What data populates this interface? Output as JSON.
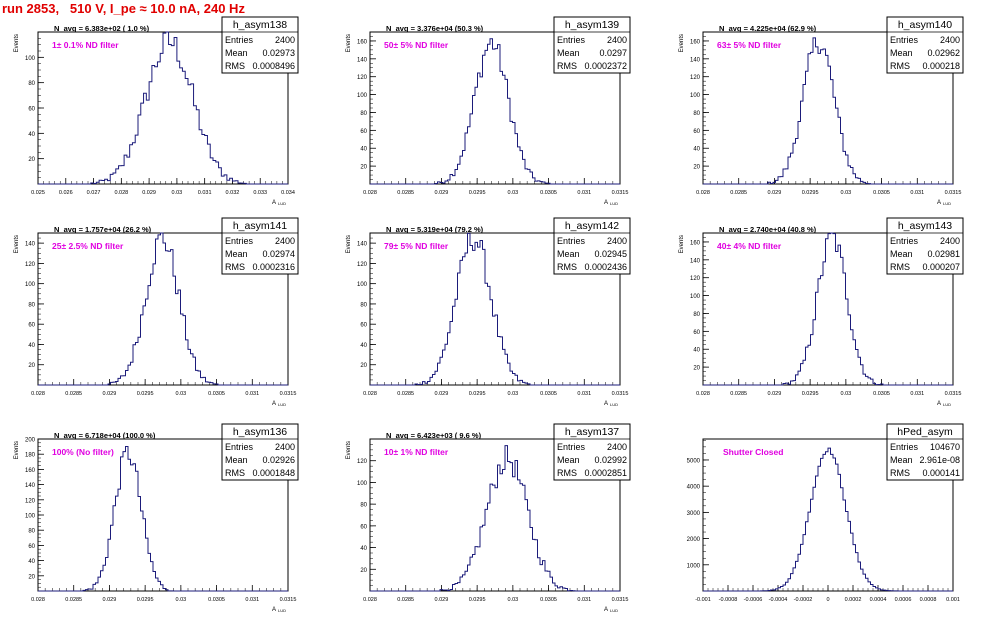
{
  "run_title": "run 2853,   510 V, I_pe ≈ 10.0 nA, 240 Hz",
  "colors": {
    "hist_line": "#1b1b7a",
    "annotation": "#e000e0",
    "title": "#e00000"
  },
  "stats_labels": {
    "entries": "Entries",
    "mean": "Mean",
    "rms": "RMS"
  },
  "chart_data": [
    {
      "type": "histogram",
      "name": "h_asym138",
      "nav": "N_avg = 6.383e+02 ( 1.0 %)",
      "filter": "1± 0.1% ND filter",
      "entries": "2400",
      "mean": "0.02973",
      "rms": "0.0008496",
      "ylabel": "Events",
      "xlabel": "A",
      "xlim": [
        0.025,
        0.034
      ],
      "ylim": [
        0,
        120
      ],
      "xticks": [
        "0.025",
        "0.026",
        "0.027",
        "0.028",
        "0.029",
        "0.03",
        "0.031",
        "0.032",
        "0.033",
        "0.034"
      ],
      "yticks": [
        "20",
        "40",
        "60",
        "80",
        "100"
      ],
      "curve": {
        "mu": 0.02973,
        "sigma": 0.00085,
        "peak": 112,
        "bin": 0.0001
      }
    },
    {
      "type": "histogram",
      "name": "h_asym139",
      "nav": "N_avg = 3.376e+04 (50.3 %)",
      "filter": "50± 5% ND filter",
      "entries": "2400",
      "mean": "0.0297",
      "rms": "0.0002372",
      "ylabel": "Events",
      "xlabel": "A",
      "xlim": [
        0.028,
        0.0315
      ],
      "ylim": [
        0,
        170
      ],
      "xticks": [
        "0.028",
        "0.0285",
        "0.029",
        "0.0295",
        "0.03",
        "0.0305",
        "0.031",
        "0.0315"
      ],
      "yticks": [
        "20",
        "40",
        "60",
        "80",
        "100",
        "120",
        "140",
        "160"
      ],
      "curve": {
        "mu": 0.0297,
        "sigma": 0.000237,
        "peak": 158,
        "bin": 3.5e-05
      }
    },
    {
      "type": "histogram",
      "name": "h_asym140",
      "nav": "N_avg = 4.225e+04 (62.9 %)",
      "filter": "63± 5% ND filter",
      "entries": "2400",
      "mean": "0.02962",
      "rms": "0.000218",
      "ylabel": "Events",
      "xlabel": "A",
      "xlim": [
        0.028,
        0.0315
      ],
      "ylim": [
        0,
        170
      ],
      "xticks": [
        "0.028",
        "0.0285",
        "0.029",
        "0.0295",
        "0.03",
        "0.0305",
        "0.031",
        "0.0315"
      ],
      "yticks": [
        "20",
        "40",
        "60",
        "80",
        "100",
        "120",
        "140",
        "160"
      ],
      "curve": {
        "mu": 0.02962,
        "sigma": 0.000218,
        "peak": 160,
        "bin": 3.5e-05
      }
    },
    {
      "type": "histogram",
      "name": "h_asym141",
      "nav": "N_avg = 1.757e+04 (26.2 %)",
      "filter": "25± 2.5% ND filter",
      "entries": "2400",
      "mean": "0.02974",
      "rms": "0.0002316",
      "ylabel": "Events",
      "xlabel": "A",
      "xlim": [
        0.028,
        0.0315
      ],
      "ylim": [
        0,
        150
      ],
      "xticks": [
        "0.028",
        "0.0285",
        "0.029",
        "0.0295",
        "0.03",
        "0.0305",
        "0.031",
        "0.0315"
      ],
      "yticks": [
        "20",
        "40",
        "60",
        "80",
        "100",
        "120",
        "140"
      ],
      "curve": {
        "mu": 0.02974,
        "sigma": 0.000232,
        "peak": 145,
        "bin": 3.5e-05
      }
    },
    {
      "type": "histogram",
      "name": "h_asym142",
      "nav": "N_avg = 5.319e+04 (79.2 %)",
      "filter": "79± 5% ND filter",
      "entries": "2400",
      "mean": "0.02945",
      "rms": "0.0002436",
      "ylabel": "Events",
      "xlabel": "A",
      "xlim": [
        0.028,
        0.0315
      ],
      "ylim": [
        0,
        150
      ],
      "xticks": [
        "0.028",
        "0.0285",
        "0.029",
        "0.0295",
        "0.03",
        "0.0305",
        "0.031",
        "0.0315"
      ],
      "yticks": [
        "20",
        "40",
        "60",
        "80",
        "100",
        "120",
        "140"
      ],
      "curve": {
        "mu": 0.02945,
        "sigma": 0.000244,
        "peak": 145,
        "bin": 3.5e-05
      }
    },
    {
      "type": "histogram",
      "name": "h_asym143",
      "nav": "N_avg = 2.740e+04 (40.8 %)",
      "filter": "40± 4% ND filter",
      "entries": "2400",
      "mean": "0.02981",
      "rms": "0.000207",
      "ylabel": "Events",
      "xlabel": "A",
      "xlim": [
        0.028,
        0.0315
      ],
      "ylim": [
        0,
        170
      ],
      "xticks": [
        "0.028",
        "0.0285",
        "0.029",
        "0.0295",
        "0.03",
        "0.0305",
        "0.031",
        "0.0315"
      ],
      "yticks": [
        "20",
        "40",
        "60",
        "80",
        "100",
        "120",
        "140",
        "160"
      ],
      "curve": {
        "mu": 0.02981,
        "sigma": 0.000207,
        "peak": 165,
        "bin": 3.5e-05
      }
    },
    {
      "type": "histogram",
      "name": "h_asym136",
      "nav": "N_avg = 6.718e+04 (100.0 %)",
      "filter": "100% (No filter)",
      "entries": "2400",
      "mean": "0.02926",
      "rms": "0.0001848",
      "ylabel": "Events",
      "xlabel": "A",
      "xlim": [
        0.028,
        0.0315
      ],
      "ylim": [
        0,
        200
      ],
      "xticks": [
        "0.028",
        "0.0285",
        "0.029",
        "0.0295",
        "0.03",
        "0.0305",
        "0.031",
        "0.0315"
      ],
      "yticks": [
        "20",
        "40",
        "60",
        "80",
        "100",
        "120",
        "140",
        "160",
        "180",
        "200"
      ],
      "curve": {
        "mu": 0.02926,
        "sigma": 0.000185,
        "peak": 182,
        "bin": 3.5e-05
      }
    },
    {
      "type": "histogram",
      "name": "h_asym137",
      "nav": "N_avg = 6.423e+03 ( 9.6 %)",
      "filter": "10± 1% ND filter",
      "entries": "2400",
      "mean": "0.02992",
      "rms": "0.0002851",
      "ylabel": "Events",
      "xlabel": "A",
      "xlim": [
        0.028,
        0.0315
      ],
      "ylim": [
        0,
        140
      ],
      "xticks": [
        "0.028",
        "0.0285",
        "0.029",
        "0.0295",
        "0.03",
        "0.0305",
        "0.031",
        "0.0315"
      ],
      "yticks": [
        "20",
        "40",
        "60",
        "80",
        "100",
        "120"
      ],
      "curve": {
        "mu": 0.02992,
        "sigma": 0.000285,
        "peak": 122,
        "bin": 3.5e-05
      }
    },
    {
      "type": "histogram",
      "name": "hPed_asym",
      "nav": "",
      "filter": "Shutter Closed",
      "entries": "104670",
      "mean": "2.961e-08",
      "rms": "0.000141",
      "ylabel": "",
      "xlabel": "",
      "xlim": [
        -0.001,
        0.001
      ],
      "ylim": [
        0,
        5800
      ],
      "xticks": [
        "-0.001",
        "-0.0008",
        "-0.0006",
        "-0.0004",
        "-0.0002",
        "0",
        "0.0002",
        "0.0004",
        "0.0006",
        "0.0008",
        "0.001"
      ],
      "yticks": [
        "1000",
        "2000",
        "3000",
        "4000",
        "5000"
      ],
      "curve": {
        "mu": 0.0,
        "sigma": 0.000141,
        "peak": 5400,
        "bin": 2e-05
      }
    }
  ]
}
